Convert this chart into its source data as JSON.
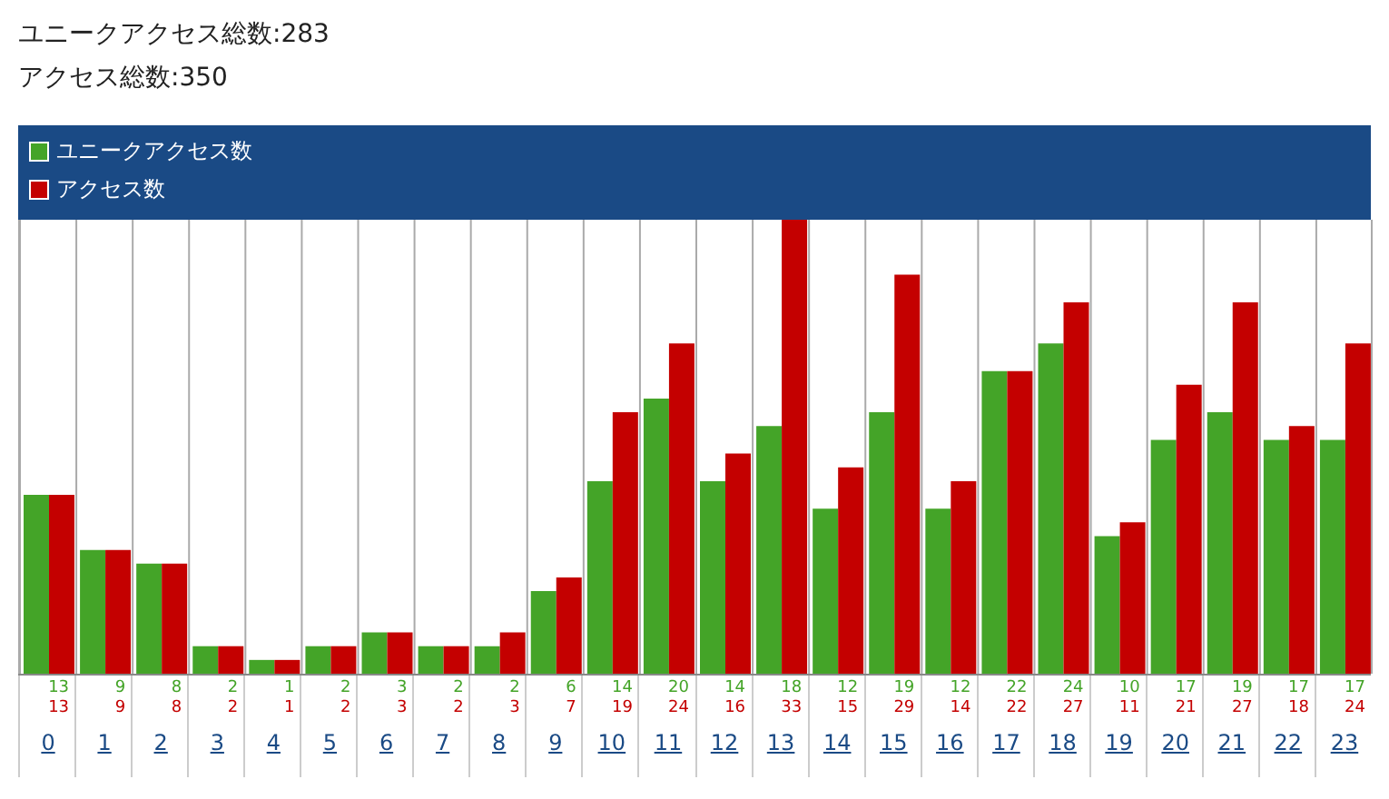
{
  "chart_data": {
    "type": "bar",
    "title": "ユニークアクセス総数:283",
    "subtitle": "アクセス総数:350",
    "categories": [
      "0",
      "1",
      "2",
      "3",
      "4",
      "5",
      "6",
      "7",
      "8",
      "9",
      "10",
      "11",
      "12",
      "13",
      "14",
      "15",
      "16",
      "17",
      "18",
      "19",
      "20",
      "21",
      "22",
      "23"
    ],
    "series": [
      {
        "name": "ユニークアクセス数",
        "color": "#44a428",
        "values": [
          13,
          9,
          8,
          2,
          1,
          2,
          3,
          2,
          2,
          6,
          14,
          20,
          14,
          18,
          12,
          19,
          12,
          22,
          24,
          10,
          17,
          19,
          17,
          17
        ]
      },
      {
        "name": "アクセス数",
        "color": "#c40000",
        "values": [
          13,
          9,
          8,
          2,
          1,
          2,
          3,
          2,
          3,
          7,
          19,
          24,
          16,
          33,
          15,
          29,
          14,
          22,
          27,
          11,
          21,
          27,
          18,
          24
        ]
      }
    ],
    "data_labels": true,
    "legend": "top",
    "grid": "x"
  }
}
